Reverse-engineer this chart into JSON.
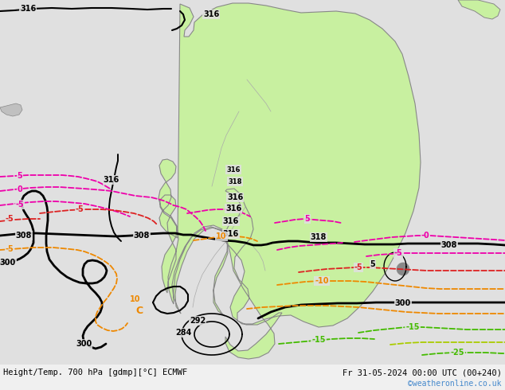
{
  "title_left": "Height/Temp. 700 hPa [gdmp][°C] ECMWF",
  "title_right": "Fr 31-05-2024 00:00 UTC (00+240)",
  "credit": "©weatheronline.co.uk",
  "bg_color": "#e0e0e0",
  "land_color": "#c8f0a0",
  "border_color": "#888888",
  "internal_border_color": "#aaaaaa",
  "fig_width": 6.34,
  "fig_height": 4.9,
  "dpi": 100
}
